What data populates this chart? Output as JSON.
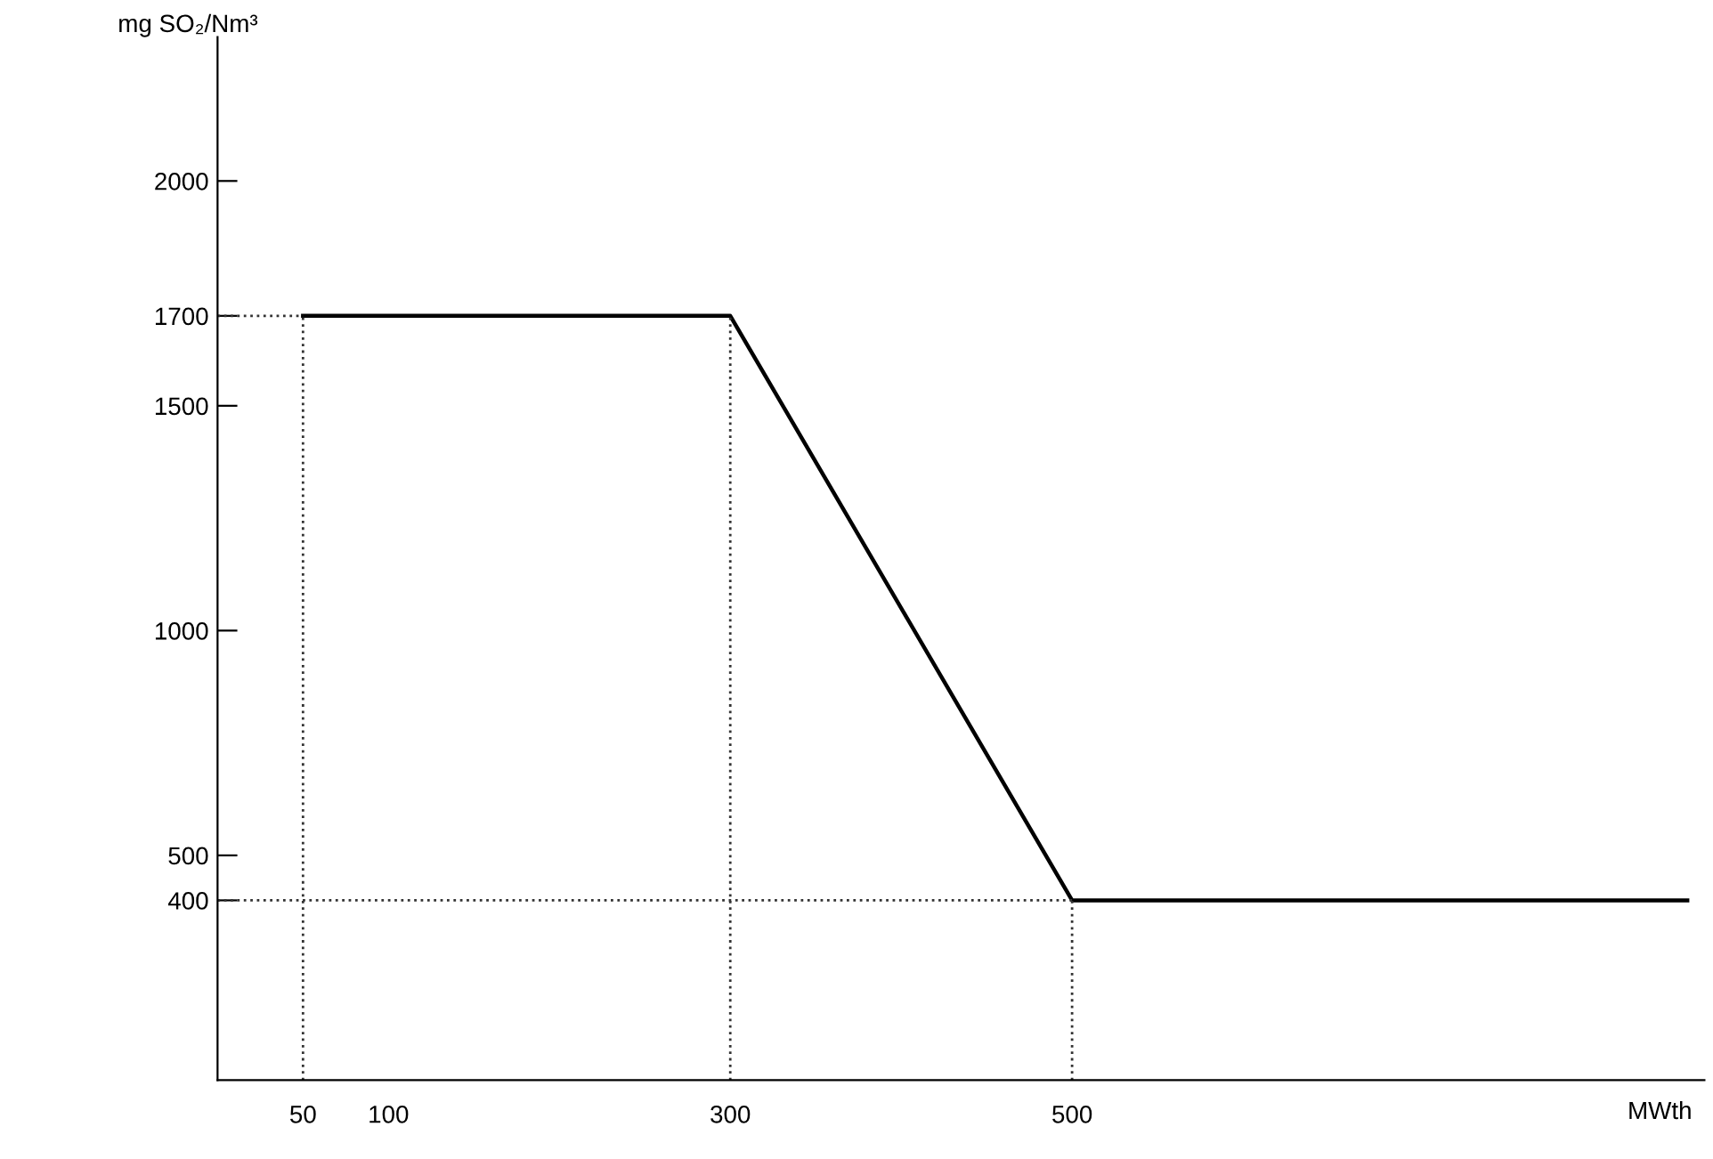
{
  "chart_data": {
    "type": "line",
    "ylabel": "mg SO₂/Nm³",
    "xlabel": "MWth",
    "x": [
      50,
      300,
      500,
      860
    ],
    "series": [
      {
        "color": "#000000",
        "values": [
          1700,
          1700,
          400,
          400
        ]
      },
      {
        "color": "#333333",
        "x": [
          0,
          50
        ],
        "values": [
          1700,
          1700
        ],
        "line_style": "dotted"
      },
      {
        "color": "#333333",
        "x": [
          0,
          500
        ],
        "values": [
          400,
          400
        ],
        "line_style": "dotted"
      }
    ],
    "xlim": [
      0,
      870
    ],
    "ylim": [
      0,
      2320
    ],
    "xticks": [
      50,
      100,
      300,
      500
    ],
    "yticks": [
      400,
      500,
      1000,
      1500,
      1700,
      2000
    ],
    "ref_lines": [
      {
        "axis": "x",
        "value": 50,
        "line_style": "dotted"
      },
      {
        "axis": "x",
        "value": 300,
        "line_style": "dotted"
      },
      {
        "axis": "x",
        "value": 500,
        "line_style": "dotted"
      }
    ],
    "grid": false,
    "marker": "none",
    "line_style": "solid"
  }
}
